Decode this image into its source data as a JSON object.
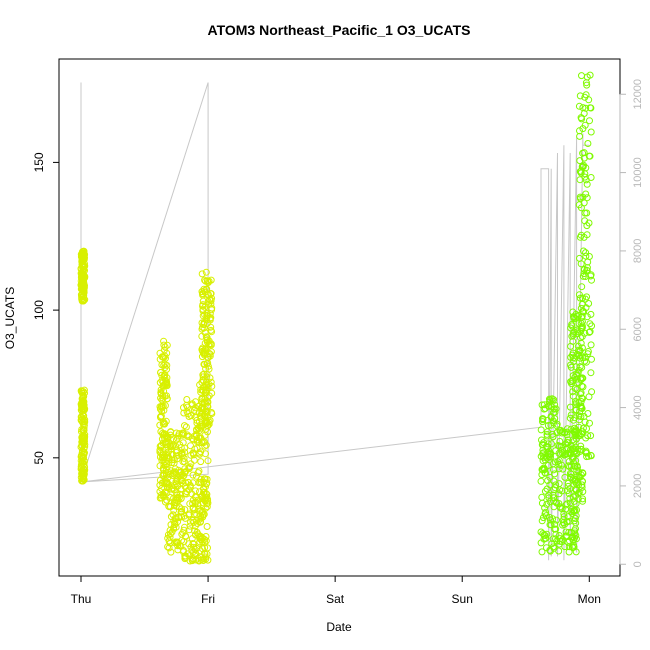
{
  "chart_data": {
    "type": "scatter",
    "title": "ATOM3 Northeast_Pacific_1 O3_UCATS",
    "xlabel": "Date",
    "ylabel": "O3_UCATS",
    "x_ticks": [
      "Thu",
      "Fri",
      "Sat",
      "Sun",
      "Mon"
    ],
    "y_ticks": [
      50,
      100,
      150
    ],
    "ylim": [
      10,
      185
    ],
    "xlim": [
      0,
      4.1
    ],
    "y2_ticks": [
      0,
      2000,
      4000,
      6000,
      8000,
      10000,
      12000
    ],
    "y2lim": [
      -300,
      12900
    ],
    "colors": {
      "points_thu": "#d8f000",
      "points_mon": "#80fa00",
      "altitude_line": "#c8c8c8",
      "right_axis": "#b8b8b8"
    },
    "series": [
      {
        "marker": "open-circle",
        "color": "#d8f000",
        "clusters": [
          {
            "x": [
              0.0,
              0.03
            ],
            "y": [
              103,
              120
            ]
          },
          {
            "x": [
              0.0,
              0.03
            ],
            "y": [
              42,
              73
            ]
          },
          {
            "x": [
              0.62,
              0.68
            ],
            "y": [
              35,
              90
            ]
          },
          {
            "x": [
              0.68,
              0.8
            ],
            "y": [
              18,
              60
            ]
          },
          {
            "x": [
              0.8,
              0.92
            ],
            "y": [
              15,
              70
            ]
          },
          {
            "x": [
              0.92,
              1.0
            ],
            "y": [
              15,
              75
            ]
          },
          {
            "x": [
              0.95,
              1.03
            ],
            "y": [
              60,
              113
            ]
          }
        ]
      },
      {
        "marker": "open-circle",
        "color": "#80fa00",
        "clusters": [
          {
            "x": [
              3.62,
              3.75
            ],
            "y": [
              18,
              70
            ]
          },
          {
            "x": [
              3.75,
              3.9
            ],
            "y": [
              18,
              60
            ]
          },
          {
            "x": [
              3.85,
              3.95
            ],
            "y": [
              35,
              100
            ]
          },
          {
            "x": [
              3.92,
              4.02
            ],
            "y": [
              50,
              180
            ]
          }
        ]
      },
      {
        "type": "line",
        "axis": "right",
        "color": "#c8c8c8",
        "x": [
          0.0,
          0.0,
          1.0,
          1.0,
          0.0,
          3.62,
          3.62,
          3.68,
          3.68,
          3.7,
          3.7,
          3.75,
          3.75,
          3.8,
          3.8,
          3.85,
          3.85,
          3.9,
          3.9,
          3.95,
          3.95,
          4.0
        ],
        "y": [
          12300,
          2100,
          2300,
          12300,
          2100,
          3500,
          10100,
          10100,
          100,
          10100,
          200,
          10500,
          200,
          10700,
          100,
          10500,
          400,
          10900,
          300,
          11000,
          10700,
          10700
        ]
      }
    ]
  }
}
